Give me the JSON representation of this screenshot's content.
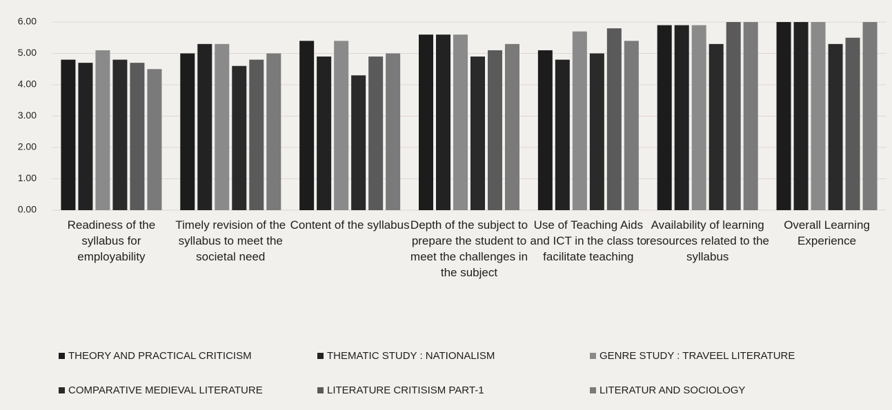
{
  "chart_data": {
    "type": "bar",
    "categories": [
      "Readiness of the syllabus for employability",
      "Timely revision of the syllabus to meet the societal need",
      "Content of the syllabus",
      "Depth of the subject to prepare the student to meet the challenges in the subject",
      "Use of Teaching Aids and ICT in the class to facilitate teaching",
      "Availability of learning resources related to the syllabus",
      "Overall Learning Experience"
    ],
    "series": [
      {
        "name": "THEORY AND PRACTICAL CRITICISM",
        "color": "#1c1c1c",
        "values": [
          4.8,
          5.0,
          5.4,
          5.6,
          5.1,
          5.9,
          6.0
        ]
      },
      {
        "name": "THEMATIC STUDY : NATIONALISM",
        "color": "#222222",
        "values": [
          4.7,
          5.3,
          4.9,
          5.6,
          4.8,
          5.9,
          6.0
        ]
      },
      {
        "name": "GENRE STUDY : TRAVEEL LITERATURE",
        "color": "#8a8a8a",
        "values": [
          5.1,
          5.3,
          5.4,
          5.6,
          5.7,
          5.9,
          6.0
        ]
      },
      {
        "name": "COMPARATIVE MEDIEVAL LITERATURE",
        "color": "#2a2a2a",
        "values": [
          4.8,
          4.6,
          4.3,
          4.9,
          5.0,
          5.3,
          5.3
        ]
      },
      {
        "name": "LITERATURE CRITISISM PART-1",
        "color": "#5a5a5a",
        "values": [
          4.7,
          4.8,
          4.9,
          5.1,
          5.8,
          6.0,
          5.5
        ]
      },
      {
        "name": "LITERATUR AND SOCIOLOGY",
        "color": "#7a7a7a",
        "values": [
          4.5,
          5.0,
          5.0,
          5.3,
          5.4,
          6.0,
          6.0
        ]
      }
    ],
    "ylim": [
      0,
      6
    ],
    "yticks": [
      {
        "value": 0,
        "label": "0.00"
      },
      {
        "value": 1,
        "label": "1.00"
      },
      {
        "value": 2,
        "label": "2.00"
      },
      {
        "value": 3,
        "label": "3.00"
      },
      {
        "value": 4,
        "label": "4.00"
      },
      {
        "value": 5,
        "label": "5.00"
      },
      {
        "value": 6,
        "label": "6.00"
      }
    ],
    "grid": true
  }
}
